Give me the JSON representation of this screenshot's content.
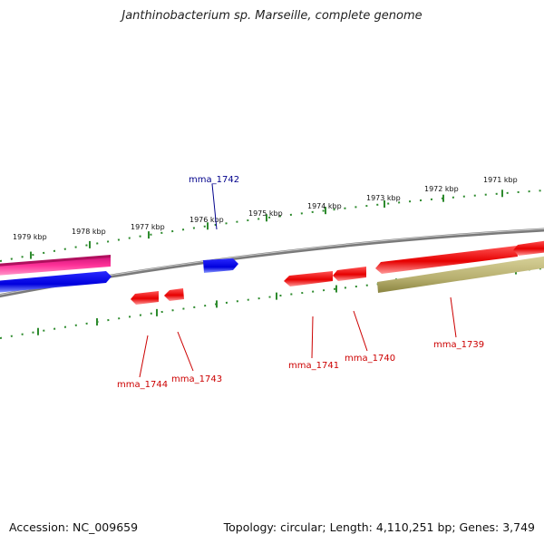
{
  "title": "Janthinobacterium sp. Marseille, complete genome",
  "footer": {
    "accession": "Accession: NC_009659",
    "summary": "Topology: circular; Length: 4,110,251 bp; Genes: 3,749"
  },
  "colors": {
    "backbone": "#808080",
    "tick_green": "#228b22",
    "forward_gene": "#0000ee",
    "reverse_gene": "#ee0000",
    "pink_feature": "#ff3399",
    "olive_feature": "#bdb76b",
    "label_forward": "#00008b",
    "label_reverse": "#cc0000"
  },
  "scale_labels": [
    "1979 kbp",
    "1978 kbp",
    "1977 kbp",
    "1976 kbp",
    "1975 kbp",
    "1974 kbp",
    "1973 kbp",
    "1972 kbp",
    "1971 kbp"
  ],
  "gene_labels": {
    "mma_1742": "mma_1742",
    "mma_1744": "mma_1744",
    "mma_1743": "mma_1743",
    "mma_1741": "mma_1741",
    "mma_1740": "mma_1740",
    "mma_1739": "mma_1739"
  }
}
